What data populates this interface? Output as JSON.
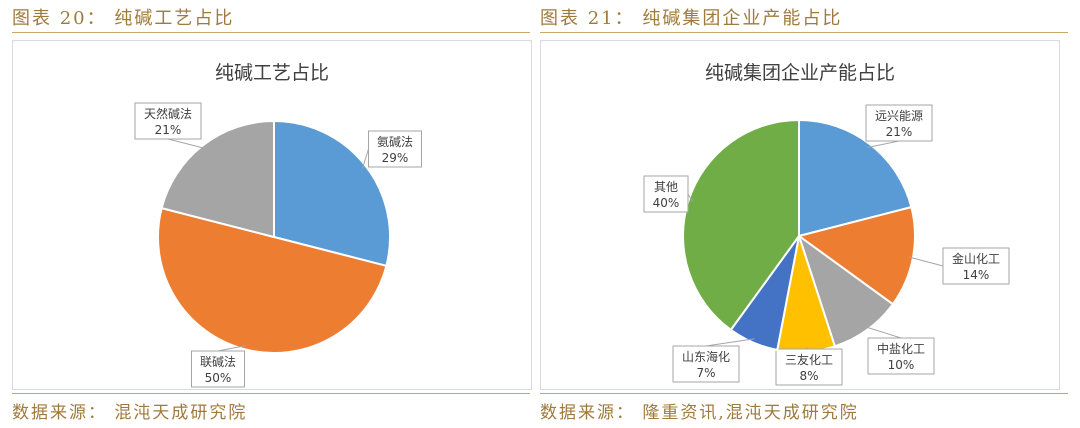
{
  "left": {
    "caption": "图表 20： 纯碱工艺占比",
    "source": "数据来源： 混沌天成研究院"
  },
  "right": {
    "caption": "图表 21： 纯碱集团企业产能占比",
    "source": "数据来源： 隆重资讯,混沌天成研究院"
  },
  "chart_data": [
    {
      "type": "pie",
      "title": "纯碱工艺占比",
      "slices": [
        {
          "name": "氨碱法",
          "value": 29,
          "label": "29%",
          "color": "#5b9bd5"
        },
        {
          "name": "联碱法",
          "value": 50,
          "label": "50%",
          "color": "#ed7d31"
        },
        {
          "name": "天然碱法",
          "value": 21,
          "label": "21%",
          "color": "#a5a5a5"
        }
      ]
    },
    {
      "type": "pie",
      "title": "纯碱集团企业产能占比",
      "slices": [
        {
          "name": "远兴能源",
          "value": 21,
          "label": "21%",
          "color": "#5b9bd5"
        },
        {
          "name": "金山化工",
          "value": 14,
          "label": "14%",
          "color": "#ed7d31"
        },
        {
          "name": "中盐化工",
          "value": 10,
          "label": "10%",
          "color": "#a5a5a5"
        },
        {
          "name": "三友化工",
          "value": 8,
          "label": "8%",
          "color": "#ffc000"
        },
        {
          "name": "山东海化",
          "value": 7,
          "label": "7%",
          "color": "#4472c4"
        },
        {
          "name": "其他",
          "value": 40,
          "label": "40%",
          "color": "#70ad47"
        }
      ]
    }
  ]
}
